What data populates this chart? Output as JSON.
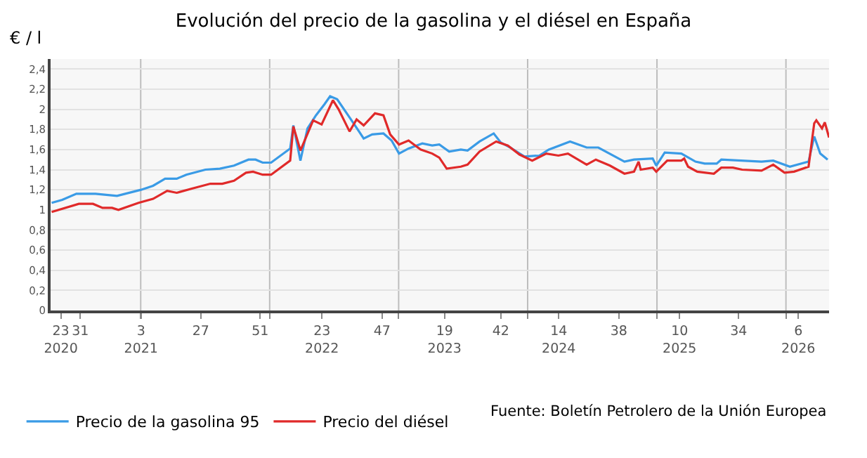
{
  "chart_data": {
    "type": "line",
    "title": "Evolución del precio de la gasolina y el diésel en España",
    "ylabel": "€ / l",
    "series": [
      {
        "name": "Precio de la gasolina 95",
        "color": "#3a9be6",
        "x": [
          "2020-04-24",
          "2020-05-24",
          "2020-07-03",
          "2020-08-26",
          "2020-10-26",
          "2021-01-02",
          "2021-02-05",
          "2021-03-11",
          "2021-04-13",
          "2021-05-10",
          "2021-07-03",
          "2021-08-13",
          "2021-09-22",
          "2021-11-02",
          "2021-11-22",
          "2021-12-12",
          "2022-01-05",
          "2022-02-28",
          "2022-03-09",
          "2022-03-29",
          "2022-04-18",
          "2022-05-12",
          "2022-06-05",
          "2022-06-21",
          "2022-07-11",
          "2022-08-15",
          "2022-09-24",
          "2022-10-18",
          "2022-11-19",
          "2022-12-12",
          "2023-01-02",
          "2023-01-29",
          "2023-03-09",
          "2023-04-06",
          "2023-04-26",
          "2023-05-24",
          "2023-06-26",
          "2023-07-15",
          "2023-08-18",
          "2023-09-27",
          "2023-10-17",
          "2023-11-13",
          "2023-12-23",
          "2024-02-03",
          "2024-03-01",
          "2024-04-30",
          "2024-06-16",
          "2024-07-19",
          "2024-10-01",
          "2024-10-28",
          "2024-12-20",
          "2024-12-30",
          "2025-01-23",
          "2025-03-11",
          "2025-04-20",
          "2025-05-16",
          "2025-06-19",
          "2025-07-02",
          "2025-10-24",
          "2025-11-26",
          "2026-01-12",
          "2026-03-06",
          "2026-03-22",
          "2026-04-08",
          "2026-04-29"
        ],
        "values": [
          1.07,
          1.1,
          1.16,
          1.16,
          1.14,
          1.2,
          1.24,
          1.31,
          1.31,
          1.35,
          1.4,
          1.41,
          1.44,
          1.5,
          1.5,
          1.47,
          1.47,
          1.61,
          1.84,
          1.49,
          1.81,
          1.94,
          2.05,
          2.13,
          2.1,
          1.92,
          1.71,
          1.75,
          1.76,
          1.69,
          1.56,
          1.61,
          1.66,
          1.64,
          1.65,
          1.58,
          1.6,
          1.59,
          1.68,
          1.76,
          1.67,
          1.62,
          1.53,
          1.54,
          1.6,
          1.68,
          1.62,
          1.62,
          1.48,
          1.5,
          1.51,
          1.44,
          1.57,
          1.56,
          1.48,
          1.46,
          1.46,
          1.5,
          1.48,
          1.49,
          1.43,
          1.48,
          1.73,
          1.56,
          1.5
        ]
      },
      {
        "name": "Precio del diésel",
        "color": "#e02a2a",
        "x": [
          "2020-04-24",
          "2020-07-10",
          "2020-08-19",
          "2020-09-15",
          "2020-10-12",
          "2020-10-30",
          "2020-12-26",
          "2021-02-05",
          "2021-03-17",
          "2021-04-13",
          "2021-05-24",
          "2021-07-17",
          "2021-08-20",
          "2021-09-22",
          "2021-10-26",
          "2021-11-15",
          "2021-12-12",
          "2022-01-05",
          "2022-02-28",
          "2022-03-09",
          "2022-03-29",
          "2022-05-04",
          "2022-05-28",
          "2022-06-29",
          "2022-07-15",
          "2022-08-15",
          "2022-09-04",
          "2022-09-24",
          "2022-10-26",
          "2022-11-19",
          "2022-12-08",
          "2023-01-02",
          "2023-01-29",
          "2023-03-04",
          "2023-04-06",
          "2023-04-26",
          "2023-05-17",
          "2023-06-26",
          "2023-07-15",
          "2023-08-18",
          "2023-10-04",
          "2023-11-06",
          "2023-12-09",
          "2024-01-14",
          "2024-02-23",
          "2024-03-28",
          "2024-04-24",
          "2024-06-16",
          "2024-07-12",
          "2024-08-21",
          "2024-10-01",
          "2024-10-28",
          "2024-11-10",
          "2024-11-16",
          "2024-12-20",
          "2024-12-30",
          "2025-01-30",
          "2025-03-11",
          "2025-03-19",
          "2025-03-30",
          "2025-04-25",
          "2025-06-11",
          "2025-07-02",
          "2025-08-04",
          "2025-08-30",
          "2025-10-24",
          "2025-11-26",
          "2025-12-28",
          "2026-01-24",
          "2026-03-06",
          "2026-03-22",
          "2026-03-28",
          "2026-04-13",
          "2026-04-21",
          "2026-05-03"
        ],
        "values": [
          0.98,
          1.06,
          1.06,
          1.02,
          1.02,
          1.0,
          1.07,
          1.11,
          1.19,
          1.17,
          1.21,
          1.26,
          1.26,
          1.29,
          1.37,
          1.38,
          1.35,
          1.35,
          1.49,
          1.83,
          1.59,
          1.89,
          1.85,
          2.09,
          2.0,
          1.78,
          1.9,
          1.84,
          1.96,
          1.94,
          1.75,
          1.65,
          1.69,
          1.6,
          1.56,
          1.52,
          1.41,
          1.43,
          1.45,
          1.58,
          1.68,
          1.64,
          1.55,
          1.49,
          1.56,
          1.54,
          1.56,
          1.45,
          1.5,
          1.44,
          1.36,
          1.38,
          1.48,
          1.4,
          1.42,
          1.38,
          1.49,
          1.49,
          1.51,
          1.43,
          1.38,
          1.36,
          1.42,
          1.42,
          1.4,
          1.39,
          1.45,
          1.37,
          1.38,
          1.43,
          1.86,
          1.89,
          1.81,
          1.87,
          1.72
        ]
      }
    ],
    "xlim": [
      "2020-04-21",
      "2026-05-03"
    ],
    "xticks": [
      {
        "value": "2020-05-20",
        "label": "23\n2020"
      },
      {
        "value": "2020-07-14",
        "label": "31"
      },
      {
        "value": "2021-01-01",
        "label": null
      },
      {
        "value": "2021-01-02",
        "label": "3\n2021"
      },
      {
        "value": "2021-06-20",
        "label": "27"
      },
      {
        "value": "2021-12-05",
        "label": "51"
      },
      {
        "value": "2022-01-01",
        "label": null
      },
      {
        "value": "2022-05-29",
        "label": "23\n2022"
      },
      {
        "value": "2022-11-15",
        "label": "47"
      },
      {
        "value": "2023-01-01",
        "label": null
      },
      {
        "value": "2023-05-11",
        "label": "19\n2023"
      },
      {
        "value": "2023-10-17",
        "label": "42"
      },
      {
        "value": "2024-01-01",
        "label": null
      },
      {
        "value": "2024-03-29",
        "label": "14\n2024"
      },
      {
        "value": "2024-09-15",
        "label": "38"
      },
      {
        "value": "2025-01-01",
        "label": null
      },
      {
        "value": "2025-03-06",
        "label": "10\n2025"
      },
      {
        "value": "2025-08-20",
        "label": "34"
      },
      {
        "value": "2026-01-01",
        "label": null
      },
      {
        "value": "2026-02-05",
        "label": "6\n2026"
      }
    ],
    "ylim": [
      0,
      2.5
    ],
    "yticks": [
      0,
      {
        "value": 0.2,
        "label": "0,2"
      },
      {
        "value": 0.4,
        "label": "0,4"
      },
      {
        "value": 0.6,
        "label": "0,6"
      },
      {
        "value": 0.8,
        "label": "0,8"
      },
      1,
      {
        "value": 1.2,
        "label": "1,2"
      },
      {
        "value": 1.4,
        "label": "1,4"
      },
      {
        "value": 1.6,
        "label": "1,6"
      },
      {
        "value": 1.8,
        "label": "1,8"
      },
      2,
      {
        "value": 2.2,
        "label": "2,2"
      },
      {
        "value": 2.4,
        "label": "2,4"
      }
    ],
    "grid": true,
    "legend": "bottom left",
    "marker": "none",
    "line_style": "solid",
    "annotations": [
      "Fuente: Boletín Petrolero de la Unión Europea"
    ]
  }
}
